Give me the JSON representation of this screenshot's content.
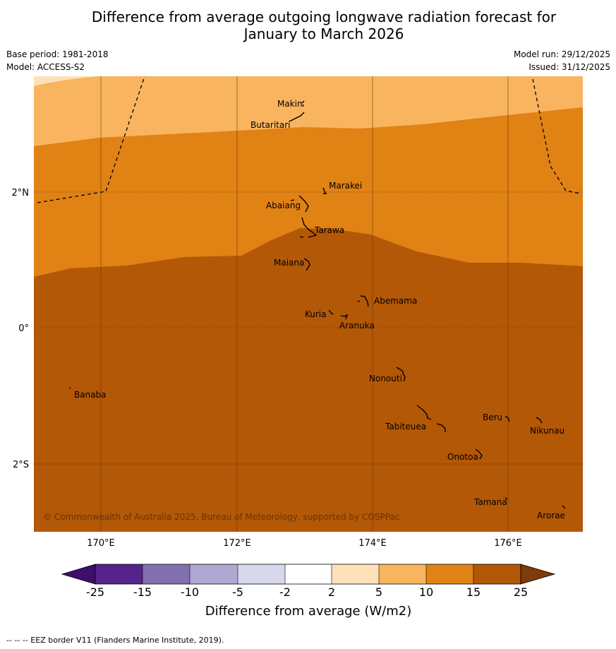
{
  "title_line1": "Difference from average outgoing longwave radiation forecast for",
  "title_line2": "January to March 2026",
  "base_period": "Base period: 1981-2018",
  "model": "Model: ACCESS-S2",
  "model_run": "Model run: 29/12/2025",
  "issued": "Issued: 31/12/2025",
  "lon_labels": [
    "170°E",
    "172°E",
    "174°E",
    "176°E"
  ],
  "lat_labels": [
    "2°N",
    "0°",
    "2°S"
  ],
  "places": {
    "makin": "Makin",
    "butaritari": "Butaritari",
    "marakei": "Marakei",
    "abaiang": "Abaiang",
    "tarawa": "Tarawa",
    "maiana": "Maiana",
    "abemama": "Abemama",
    "kuria": "Kuria",
    "aranuka": "Aranuka",
    "nonouti": "Nonouti",
    "banaba": "Banaba",
    "tabiteuea": "Tabiteuea",
    "beru": "Beru",
    "nikunau": "Nikunau",
    "onotoa": "Onotoa",
    "tamana": "Tamana",
    "arorae": "Arorae"
  },
  "copyright": "© Commonwealth of Australia 2025, Bureau of Meteorology, supported by COSPPac",
  "colorbar": {
    "ticks": [
      "-25",
      "-15",
      "-10",
      "-5",
      "-2",
      "2",
      "5",
      "10",
      "15",
      "25"
    ],
    "title": "Difference from average (W/m2)",
    "colors": [
      "#3f0d6b",
      "#56238c",
      "#8071ae",
      "#b0a8d2",
      "#d8d8ec",
      "#ffffff",
      "#fde1b8",
      "#f9b45f",
      "#e08214",
      "#b35806",
      "#7f3b08"
    ]
  },
  "footer": "--  --  -- EEZ border V11 (Flanders Marine Institute, 2019)."
}
